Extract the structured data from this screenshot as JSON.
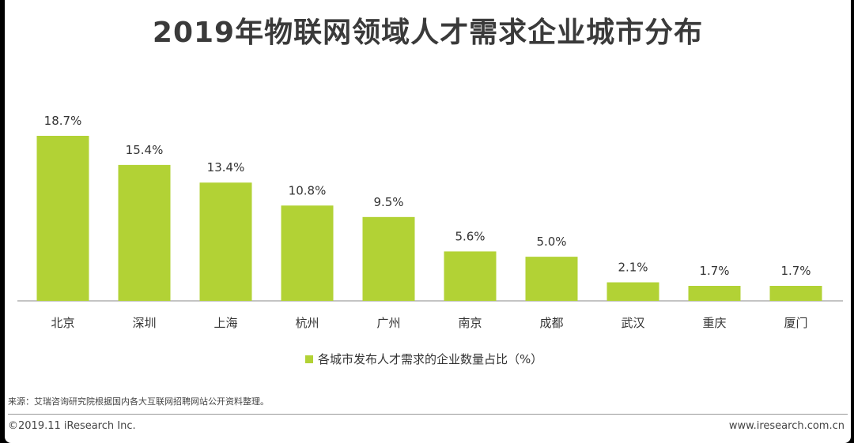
{
  "title": "2019年物联网领域人才需求企业城市分布",
  "chart_data": {
    "type": "bar",
    "title": "2019年物联网领域人才需求企业城市分布",
    "categories": [
      "北京",
      "深圳",
      "上海",
      "杭州",
      "广州",
      "南京",
      "成都",
      "武汉",
      "重庆",
      "厦门"
    ],
    "values": [
      18.7,
      15.4,
      13.4,
      10.8,
      9.5,
      5.6,
      5.0,
      2.1,
      1.7,
      1.7
    ],
    "value_labels": [
      "18.7%",
      "15.4%",
      "13.4%",
      "10.8%",
      "9.5%",
      "5.6%",
      "5.0%",
      "2.1%",
      "1.7%",
      "1.7%"
    ],
    "series": [
      {
        "name": "各城市发布人才需求的企业数量占比（%）",
        "color": "#b2d235"
      }
    ],
    "ylim": [
      0,
      18.7
    ],
    "xlabel": "",
    "ylabel": "",
    "grid": false,
    "legend_position": "bottom"
  },
  "legend_label": "各城市发布人才需求的企业数量占比（%）",
  "source": "来源：艾瑞咨询研究院根据国内各大互联网招聘网站公开资料整理。",
  "footer": {
    "copyright": "©2019.11 iResearch Inc.",
    "website": "www.iresearch.com.cn"
  },
  "colors": {
    "bar": "#b2d235",
    "axis": "#888888"
  }
}
